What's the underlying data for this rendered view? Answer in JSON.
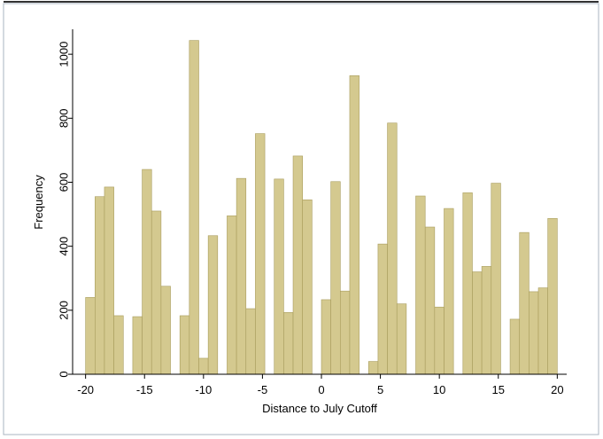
{
  "chart_data": {
    "type": "histogram",
    "x_label": "Distance to July Cutoff",
    "y_label": "Frequency",
    "bins": [
      -20,
      -19.2,
      -18.4,
      -17.6,
      -16.8,
      -16,
      -15.2,
      -14.4,
      -13.6,
      -12.8,
      -12,
      -11.2,
      -10.4,
      -9.6,
      -8.8,
      -8,
      -7.2,
      -6.4,
      -5.6,
      -4.8,
      -4,
      -3.2,
      -2.4,
      -1.6,
      -0.8,
      0,
      0.8,
      1.6,
      2.4,
      3.2,
      4,
      4.8,
      5.6,
      6.4,
      7.2,
      8,
      8.8,
      9.6,
      10.4,
      11.2,
      12,
      12.8,
      13.6,
      14.4,
      15.2,
      16,
      16.8,
      17.6,
      18.4,
      19.2,
      20
    ],
    "values": [
      240,
      555,
      585,
      183,
      0,
      180,
      640,
      510,
      275,
      0,
      183,
      1043,
      50,
      433,
      0,
      495,
      612,
      205,
      752,
      0,
      610,
      193,
      682,
      545,
      0,
      233,
      602,
      260,
      933,
      0,
      40,
      407,
      785,
      220,
      0,
      557,
      460,
      210,
      518,
      0,
      567,
      320,
      337,
      597,
      0,
      172,
      443,
      258,
      270,
      487
    ],
    "color": "#d4c98f",
    "xlim": [
      -21.1,
      20.8
    ],
    "ylim": [
      0,
      1078
    ],
    "xticks": [
      -20,
      -15,
      -10,
      -5,
      0,
      5,
      10,
      15,
      20
    ],
    "yticks": [
      0,
      200,
      400,
      600,
      800,
      1000
    ]
  }
}
